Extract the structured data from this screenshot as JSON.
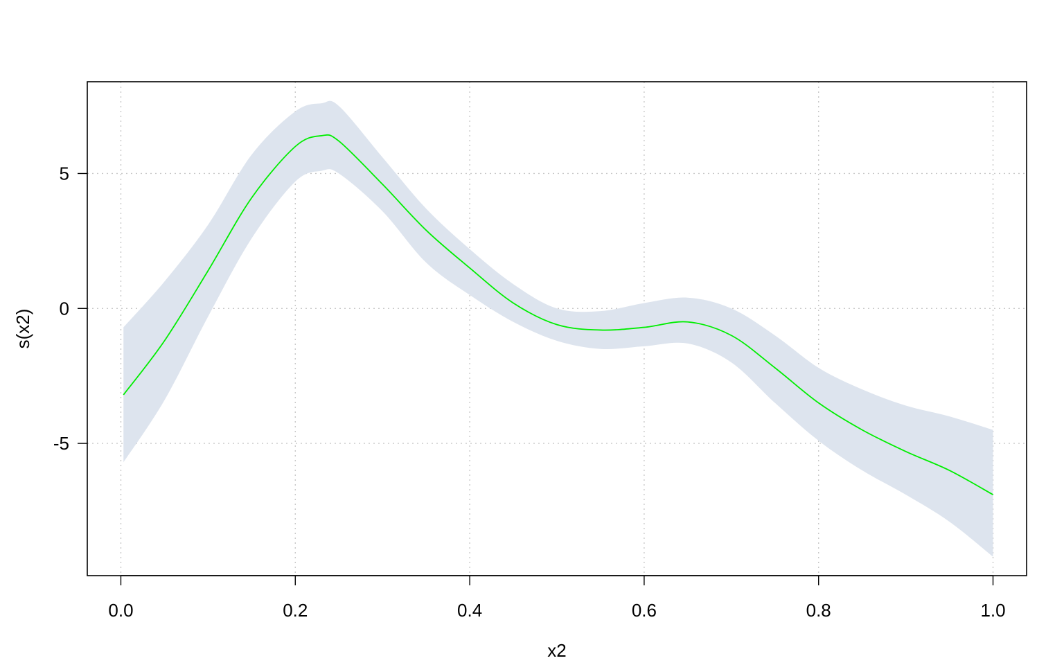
{
  "chart_data": {
    "type": "line",
    "title": "",
    "xlabel": "x2",
    "ylabel": "s(x2)",
    "xlim": [
      -0.0385,
      1.0385
    ],
    "ylim": [
      -9.9,
      8.4
    ],
    "x_ticks": [
      0.0,
      0.2,
      0.4,
      0.6,
      0.8,
      1.0
    ],
    "x_tick_labels": [
      "0.0",
      "0.2",
      "0.4",
      "0.6",
      "0.8",
      "1.0"
    ],
    "y_ticks": [
      -5,
      0,
      5
    ],
    "y_tick_labels": [
      "-5",
      "0",
      "5"
    ],
    "grid": true,
    "legend": "none",
    "colors": {
      "line": "#00ee00",
      "band": "#dde4ee",
      "grid": "#c8c8c8",
      "frame": "#000000"
    },
    "series": [
      {
        "x": [
          0.003,
          0.05,
          0.1,
          0.15,
          0.2,
          0.23,
          0.25,
          0.3,
          0.35,
          0.4,
          0.45,
          0.5,
          0.55,
          0.6,
          0.65,
          0.7,
          0.75,
          0.8,
          0.85,
          0.9,
          0.95,
          1.0
        ],
        "y": [
          -3.2,
          -1.2,
          1.4,
          4.1,
          6.0,
          6.4,
          6.2,
          4.6,
          2.9,
          1.5,
          0.2,
          -0.6,
          -0.8,
          -0.7,
          -0.5,
          -1.0,
          -2.2,
          -3.5,
          -4.5,
          -5.3,
          -6.0,
          -6.9
        ],
        "lower": [
          -5.7,
          -3.4,
          -0.3,
          2.6,
          4.7,
          5.1,
          5.0,
          3.6,
          1.7,
          0.5,
          -0.5,
          -1.2,
          -1.5,
          -1.4,
          -1.3,
          -2.0,
          -3.5,
          -4.9,
          -6.0,
          -6.9,
          -7.9,
          -9.2
        ],
        "upper": [
          -0.7,
          1.0,
          3.1,
          5.7,
          7.3,
          7.6,
          7.5,
          5.6,
          3.7,
          2.2,
          0.9,
          0.0,
          -0.1,
          0.2,
          0.4,
          0.0,
          -1.0,
          -2.2,
          -3.0,
          -3.6,
          -4.0,
          -4.5
        ]
      }
    ]
  }
}
